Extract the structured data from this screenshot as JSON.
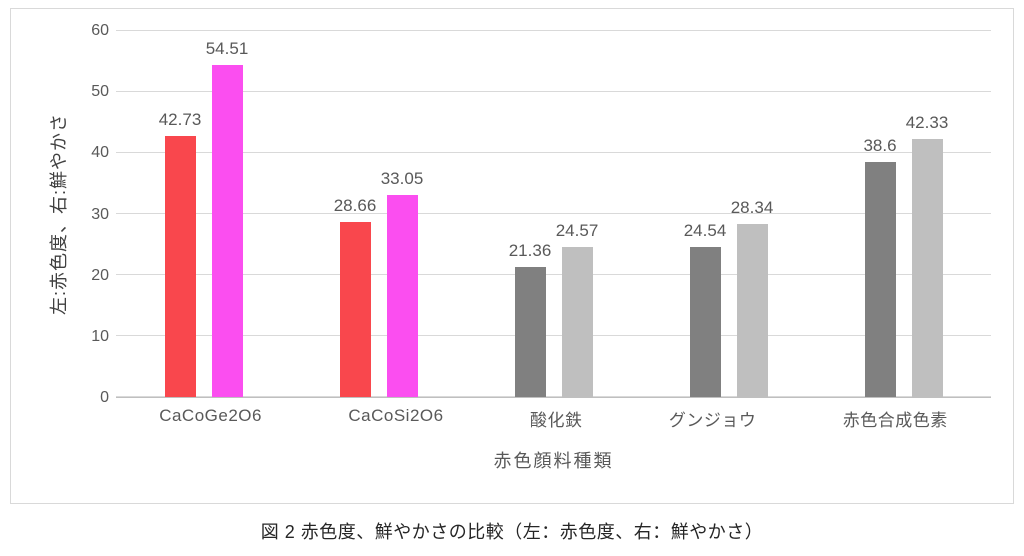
{
  "chart_data": {
    "type": "bar",
    "title": "",
    "categories": [
      "CaCoGe2O6",
      "CaCoSi2O6",
      "酸化鉄",
      "グンジョウ",
      "赤色合成色素"
    ],
    "series": [
      {
        "name": "赤色度（左）",
        "values": [
          42.73,
          28.66,
          21.36,
          24.54,
          38.6
        ],
        "colors": [
          "#f9474d",
          "#f9474d",
          "#808080",
          "#808080",
          "#808080"
        ]
      },
      {
        "name": "鮮やかさ（右）",
        "values": [
          54.51,
          33.05,
          24.57,
          28.34,
          42.33
        ],
        "colors": [
          "#fb4ef0",
          "#fb4ef0",
          "#bfbfbf",
          "#bfbfbf",
          "#bfbfbf"
        ]
      }
    ],
    "xlabel": "赤色顔料種類",
    "ylabel": "左:赤色度、右:鮮やかさ",
    "yticks": [
      0,
      10,
      20,
      30,
      40,
      50,
      60
    ],
    "ylim": [
      0,
      60
    ],
    "grid": true,
    "legend_position": "none",
    "gridline_color": "#d9d9d9",
    "axis_text_color": "#595959"
  },
  "figure_caption": "図 2  赤色度、鮮やかさの比較（左：赤色度、右：鮮やかさ）"
}
